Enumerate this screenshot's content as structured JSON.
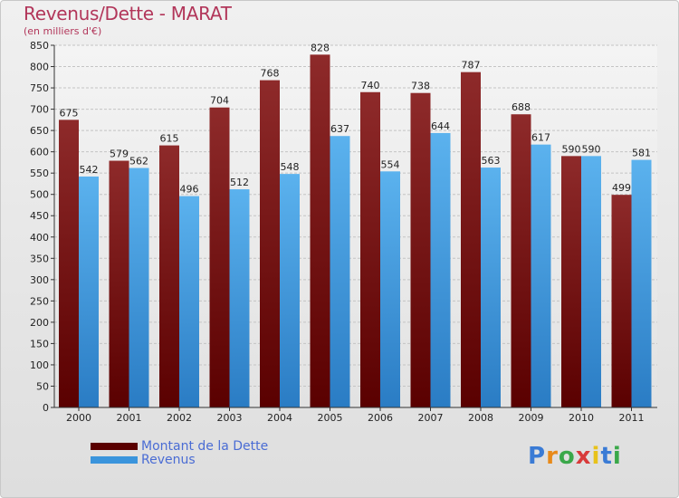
{
  "header": {
    "title": "Revenus/Dette - MARAT",
    "subtitle": "(en milliers d'€)"
  },
  "chart_data": {
    "type": "bar",
    "categories": [
      "2000",
      "2001",
      "2002",
      "2003",
      "2004",
      "2005",
      "2006",
      "2007",
      "2008",
      "2009",
      "2010",
      "2011"
    ],
    "series": [
      {
        "name": "Montant de la Dette",
        "values": [
          675,
          579,
          615,
          704,
          768,
          828,
          740,
          738,
          787,
          688,
          590,
          499
        ],
        "color": "#7a1414"
      },
      {
        "name": "Revenus",
        "values": [
          542,
          562,
          496,
          512,
          548,
          637,
          554,
          644,
          563,
          617,
          590,
          581
        ],
        "color": "#4aa3e6"
      }
    ],
    "title": "Revenus/Dette - MARAT",
    "ylabel": "(en milliers d'€)",
    "ylim": [
      0,
      850
    ],
    "ytick_step": 50,
    "grid": true,
    "legend_position": "bottom-left"
  },
  "legend": {
    "items": [
      {
        "label": "Montant de la Dette",
        "color": "#7a1414"
      },
      {
        "label": "Revenus",
        "color": "#4aa3e6"
      }
    ]
  },
  "logo": {
    "letters": [
      "P",
      "r",
      "o",
      "x",
      "i",
      "t",
      "i"
    ],
    "colors": [
      "#3a7bd5",
      "#e88a1a",
      "#3aa84a",
      "#d83a3a",
      "#e8c21a",
      "#3a7bd5",
      "#3aa84a"
    ]
  }
}
